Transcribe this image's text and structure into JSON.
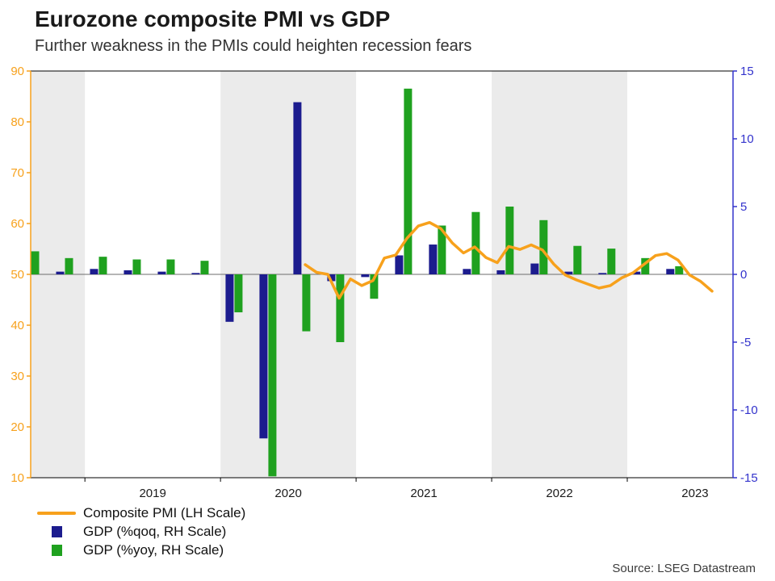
{
  "title": "Eurozone composite PMI vs GDP",
  "subtitle": "Further weakness in the PMIs could heighten recession fears",
  "source": "Source: LSEG Datastream",
  "legend": [
    {
      "label": "Composite PMI (LH Scale)",
      "type": "line",
      "color": "#F7A11C"
    },
    {
      "label": "GDP (%qoq, RH Scale)",
      "type": "bar",
      "color": "#1C1C8E"
    },
    {
      "label": "GDP (%yoy, RH Scale)",
      "type": "bar",
      "color": "#1FA11F"
    }
  ],
  "chart_data": {
    "type": "combo_bar_line",
    "x_domain": {
      "start": 2018.6,
      "end": 2023.78
    },
    "x_ticks": [
      2019,
      2020,
      2021,
      2022,
      2023
    ],
    "shaded_bands": [
      [
        2018.6,
        2019
      ],
      [
        2020,
        2021
      ],
      [
        2022,
        2023
      ]
    ],
    "band_color": "#EBEBEB",
    "left_axis": {
      "min": 10,
      "max": 90,
      "ticks": [
        10,
        20,
        30,
        40,
        50,
        60,
        70,
        80,
        90
      ],
      "color": "#F7A11C"
    },
    "right_axis": {
      "min": -15,
      "max": 15,
      "ticks": [
        -15,
        -10,
        -5,
        0,
        5,
        10,
        15
      ],
      "color": "#3333CC"
    },
    "bars": {
      "quarters": [
        "2018-Q3",
        "2018-Q4",
        "2019-Q1",
        "2019-Q2",
        "2019-Q3",
        "2019-Q4",
        "2020-Q1",
        "2020-Q2",
        "2020-Q3",
        "2020-Q4",
        "2021-Q1",
        "2021-Q2",
        "2021-Q3",
        "2021-Q4",
        "2022-Q1",
        "2022-Q2",
        "2022-Q3",
        "2022-Q4",
        "2023-Q1",
        "2023-Q2"
      ],
      "gdp_qoq": {
        "color": "#1C1C8E",
        "values": [
          0.3,
          0.2,
          0.4,
          0.3,
          0.2,
          0.1,
          -3.5,
          -12.1,
          12.7,
          -0.5,
          -0.2,
          1.4,
          2.2,
          0.4,
          0.3,
          0.8,
          0.2,
          0.1,
          0.2,
          0.4
        ]
      },
      "gdp_yoy": {
        "color": "#1FA11F",
        "values": [
          1.7,
          1.2,
          1.3,
          1.1,
          1.1,
          1.0,
          -2.8,
          -14.9,
          -4.2,
          -5.0,
          -1.8,
          13.7,
          3.6,
          4.6,
          5.0,
          4.0,
          2.1,
          1.9,
          1.2,
          0.6
        ]
      }
    },
    "pmi_line": {
      "color": "#F7A11C",
      "scale": "left",
      "months": [
        "2020-08",
        "2020-09",
        "2020-10",
        "2020-11",
        "2020-12",
        "2021-01",
        "2021-02",
        "2021-03",
        "2021-04",
        "2021-05",
        "2021-06",
        "2021-07",
        "2021-08",
        "2021-09",
        "2021-10",
        "2021-11",
        "2021-12",
        "2022-01",
        "2022-02",
        "2022-03",
        "2022-04",
        "2022-05",
        "2022-06",
        "2022-07",
        "2022-08",
        "2022-09",
        "2022-10",
        "2022-11",
        "2022-12",
        "2023-01",
        "2023-02",
        "2023-03",
        "2023-04",
        "2023-05",
        "2023-06",
        "2023-07",
        "2023-08"
      ],
      "values": [
        51.9,
        50.4,
        50.0,
        45.3,
        49.1,
        47.8,
        48.8,
        53.2,
        53.8,
        57.1,
        59.5,
        60.2,
        59.0,
        56.2,
        54.2,
        55.4,
        53.3,
        52.3,
        55.5,
        54.9,
        55.8,
        54.8,
        52.0,
        49.9,
        48.9,
        48.1,
        47.3,
        47.8,
        49.3,
        50.3,
        52.0,
        53.7,
        54.1,
        52.8,
        49.9,
        48.6,
        46.7
      ]
    }
  }
}
